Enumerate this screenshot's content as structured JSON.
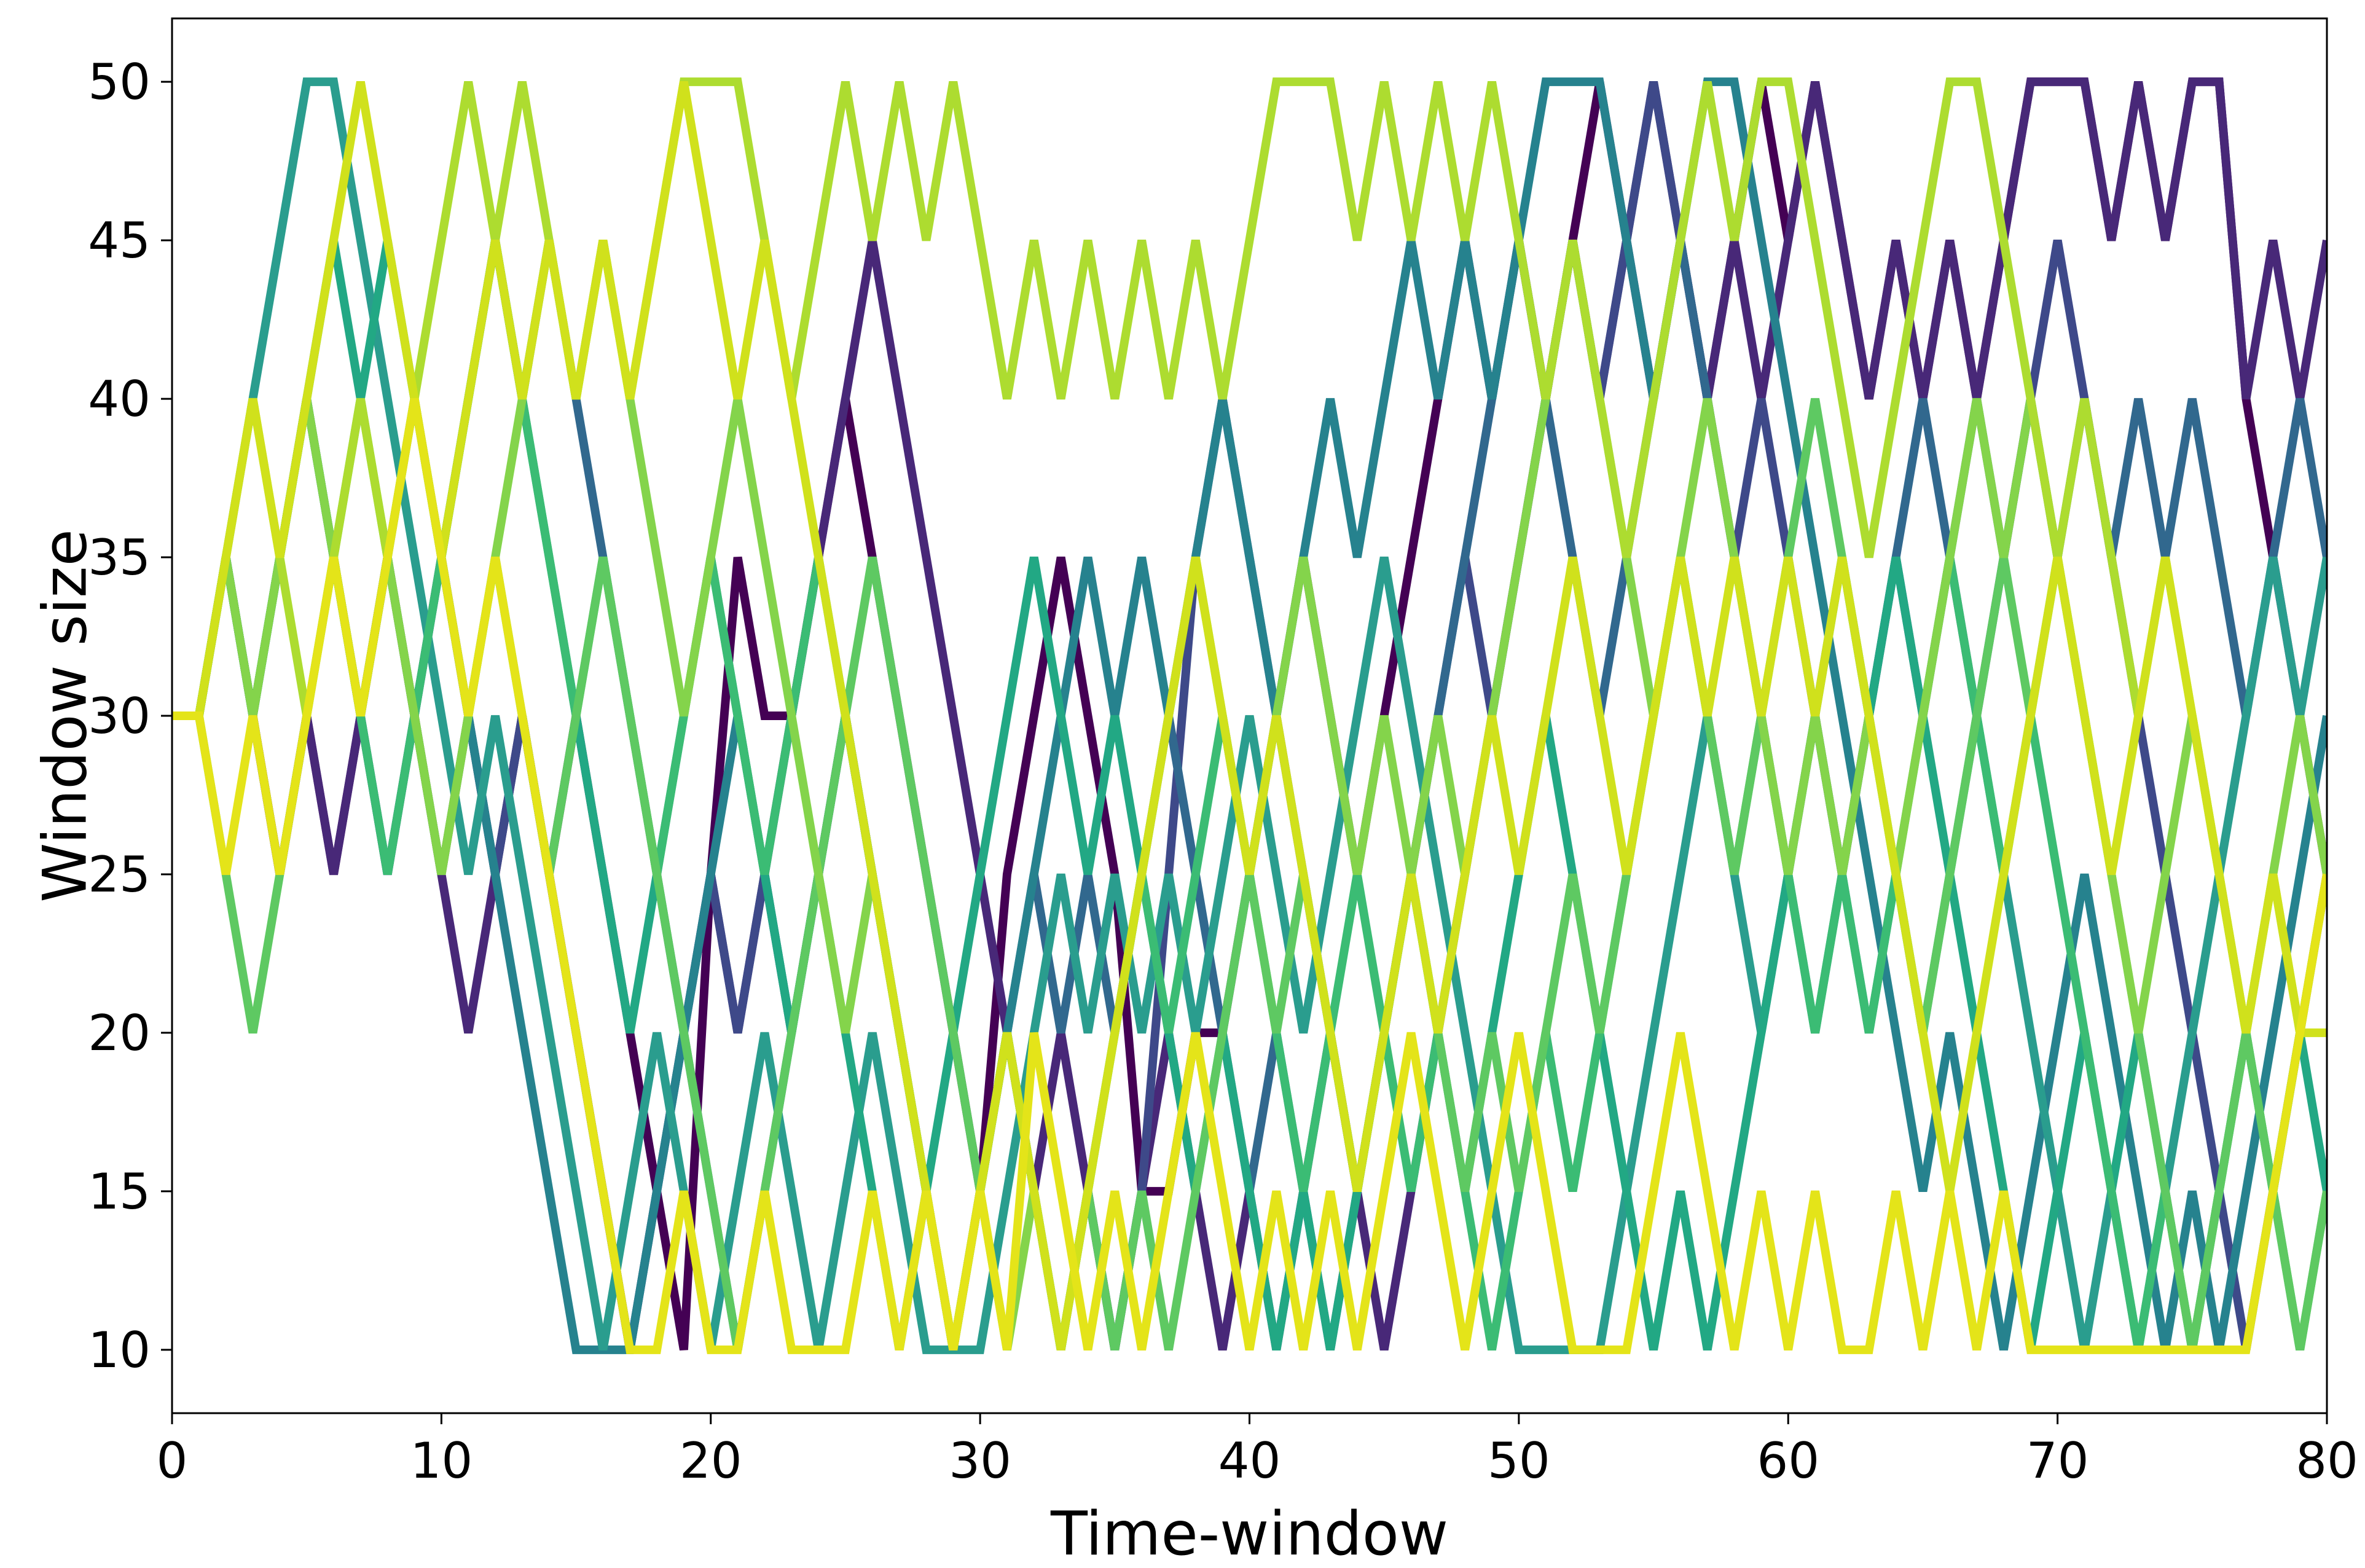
{
  "chart_data": {
    "type": "line",
    "title": "",
    "xlabel": "Time-window",
    "ylabel": "Window size",
    "xlim": [
      0,
      80
    ],
    "ylim": [
      8,
      52
    ],
    "xticks": [
      0,
      10,
      20,
      30,
      40,
      50,
      60,
      70,
      80
    ],
    "yticks": [
      10,
      15,
      20,
      25,
      30,
      35,
      40,
      45,
      50
    ],
    "grid": false,
    "legend": "none",
    "colormap": "viridis",
    "x": [
      0,
      1,
      2,
      3,
      4,
      5,
      6,
      7,
      8,
      9,
      10,
      11,
      12,
      13,
      14,
      15,
      16,
      17,
      18,
      19,
      20,
      21,
      22,
      23,
      24,
      25,
      26,
      27,
      28,
      29,
      30,
      31,
      32,
      33,
      34,
      35,
      36,
      37,
      38,
      39,
      40,
      41,
      42,
      43,
      44,
      45,
      46,
      47,
      48,
      49,
      50,
      51,
      52,
      53,
      54,
      55,
      56,
      57,
      58,
      59,
      60,
      61,
      62,
      63,
      64,
      65,
      66,
      67,
      68,
      69,
      70,
      71,
      72,
      73,
      74,
      75,
      76,
      77,
      78,
      79,
      80
    ],
    "series": [
      {
        "color": "#440154",
        "values": [
          30,
          30,
          35,
          30,
          25,
          30,
          25,
          30,
          35,
          30,
          25,
          30,
          25,
          30,
          25,
          30,
          25,
          20,
          15,
          10,
          25,
          35,
          30,
          30,
          35,
          40,
          35,
          30,
          25,
          20,
          15,
          25,
          30,
          35,
          30,
          25,
          15,
          15,
          20,
          20,
          25,
          30,
          35,
          30,
          25,
          30,
          35,
          40,
          45,
          40,
          45,
          40,
          45,
          50,
          45,
          40,
          45,
          40,
          45,
          50,
          45,
          50,
          45,
          40,
          45,
          40,
          45,
          40,
          45,
          50,
          50,
          50,
          45,
          50,
          45,
          50,
          50,
          40,
          35,
          30,
          25
        ]
      },
      {
        "color": "#482878",
        "values": [
          30,
          30,
          35,
          30,
          25,
          30,
          25,
          30,
          35,
          30,
          25,
          20,
          25,
          30,
          25,
          20,
          15,
          10,
          15,
          20,
          25,
          20,
          25,
          30,
          35,
          40,
          45,
          40,
          35,
          30,
          25,
          20,
          15,
          20,
          15,
          10,
          15,
          20,
          15,
          10,
          15,
          10,
          15,
          20,
          15,
          10,
          15,
          20,
          25,
          30,
          35,
          40,
          45,
          40,
          45,
          50,
          45,
          40,
          45,
          40,
          45,
          50,
          45,
          40,
          45,
          40,
          45,
          40,
          45,
          50,
          50,
          50,
          45,
          50,
          45,
          50,
          50,
          40,
          45,
          40,
          45
        ]
      },
      {
        "color": "#3e4989",
        "values": [
          30,
          30,
          35,
          30,
          35,
          40,
          35,
          30,
          25,
          30,
          35,
          30,
          25,
          30,
          25,
          20,
          15,
          10,
          15,
          20,
          25,
          20,
          25,
          20,
          25,
          30,
          25,
          20,
          15,
          10,
          15,
          20,
          15,
          10,
          15,
          10,
          15,
          25,
          35,
          40,
          35,
          30,
          25,
          20,
          15,
          20,
          25,
          30,
          35,
          30,
          35,
          40,
          45,
          40,
          45,
          50,
          45,
          40,
          35,
          40,
          35,
          30,
          25,
          30,
          35,
          30,
          35,
          30,
          35,
          40,
          45,
          40,
          35,
          30,
          25,
          20,
          15,
          10,
          15,
          20,
          25
        ]
      },
      {
        "color": "#31688e",
        "values": [
          30,
          30,
          35,
          30,
          35,
          40,
          35,
          30,
          25,
          30,
          35,
          40,
          45,
          40,
          45,
          40,
          35,
          30,
          25,
          20,
          15,
          10,
          15,
          20,
          25,
          30,
          25,
          20,
          15,
          10,
          15,
          20,
          25,
          20,
          25,
          20,
          25,
          30,
          25,
          20,
          15,
          20,
          15,
          10,
          15,
          20,
          25,
          30,
          35,
          40,
          45,
          40,
          35,
          30,
          35,
          40,
          45,
          40,
          35,
          30,
          25,
          30,
          25,
          30,
          35,
          40,
          35,
          40,
          35,
          40,
          35,
          40,
          35,
          40,
          35,
          40,
          35,
          30,
          35,
          40,
          35
        ]
      },
      {
        "color": "#26828e",
        "values": [
          30,
          30,
          35,
          30,
          35,
          40,
          35,
          30,
          35,
          40,
          35,
          30,
          25,
          20,
          15,
          10,
          10,
          10,
          15,
          20,
          25,
          30,
          25,
          20,
          25,
          30,
          25,
          20,
          15,
          10,
          15,
          20,
          25,
          30,
          35,
          30,
          35,
          30,
          35,
          40,
          35,
          30,
          35,
          40,
          35,
          40,
          45,
          40,
          45,
          40,
          45,
          50,
          50,
          50,
          45,
          40,
          45,
          50,
          50,
          45,
          40,
          35,
          30,
          25,
          20,
          15,
          20,
          15,
          10,
          15,
          20,
          25,
          20,
          15,
          10,
          15,
          10,
          15,
          20,
          25,
          30
        ]
      },
      {
        "color": "#2a9d8e",
        "values": [
          30,
          30,
          35,
          40,
          45,
          50,
          50,
          45,
          40,
          35,
          30,
          25,
          30,
          25,
          20,
          15,
          10,
          15,
          20,
          15,
          10,
          15,
          20,
          15,
          10,
          15,
          20,
          15,
          10,
          10,
          10,
          15,
          20,
          25,
          20,
          25,
          20,
          25,
          20,
          25,
          30,
          25,
          20,
          25,
          30,
          35,
          30,
          25,
          20,
          15,
          10,
          10,
          10,
          10,
          15,
          20,
          25,
          30,
          25,
          20,
          25,
          20,
          25,
          20,
          25,
          20,
          25,
          30,
          25,
          20,
          15,
          10,
          15,
          10,
          15,
          20,
          25,
          30,
          35,
          30,
          35
        ]
      },
      {
        "color": "#22a884",
        "values": [
          30,
          30,
          35,
          30,
          35,
          40,
          45,
          40,
          45,
          40,
          35,
          40,
          45,
          40,
          35,
          30,
          25,
          20,
          25,
          30,
          35,
          30,
          25,
          20,
          25,
          20,
          15,
          10,
          15,
          20,
          25,
          30,
          35,
          30,
          25,
          30,
          25,
          20,
          15,
          20,
          15,
          10,
          15,
          10,
          15,
          20,
          25,
          20,
          15,
          20,
          25,
          30,
          25,
          20,
          15,
          10,
          15,
          10,
          15,
          20,
          25,
          30,
          35,
          30,
          35,
          30,
          25,
          20,
          15,
          10,
          15,
          20,
          15,
          20,
          15,
          10,
          15,
          20,
          15,
          20,
          15
        ]
      },
      {
        "color": "#3bbc74",
        "values": [
          30,
          30,
          35,
          30,
          35,
          40,
          35,
          30,
          25,
          30,
          35,
          40,
          45,
          40,
          35,
          30,
          35,
          30,
          25,
          30,
          35,
          30,
          25,
          30,
          35,
          30,
          25,
          20,
          15,
          10,
          15,
          20,
          15,
          10,
          15,
          20,
          25,
          20,
          25,
          30,
          25,
          20,
          15,
          20,
          25,
          20,
          15,
          20,
          15,
          10,
          15,
          20,
          15,
          20,
          25,
          30,
          35,
          30,
          25,
          30,
          25,
          20,
          25,
          20,
          25,
          30,
          35,
          30,
          25,
          30,
          25,
          20,
          15,
          10,
          15,
          10,
          15,
          20,
          15,
          10,
          15
        ]
      },
      {
        "color": "#5ec962",
        "values": [
          30,
          30,
          25,
          20,
          25,
          30,
          35,
          40,
          35,
          30,
          25,
          30,
          35,
          30,
          25,
          30,
          35,
          30,
          25,
          20,
          15,
          10,
          15,
          20,
          25,
          30,
          35,
          30,
          25,
          20,
          15,
          20,
          15,
          10,
          15,
          10,
          15,
          10,
          15,
          20,
          25,
          20,
          25,
          20,
          15,
          20,
          25,
          20,
          15,
          20,
          15,
          20,
          25,
          20,
          25,
          30,
          35,
          30,
          25,
          30,
          35,
          40,
          35,
          30,
          25,
          20,
          25,
          30,
          35,
          30,
          35,
          30,
          25,
          20,
          15,
          10,
          15,
          20,
          15,
          10,
          15
        ]
      },
      {
        "color": "#84d44b",
        "values": [
          30,
          30,
          35,
          30,
          35,
          40,
          35,
          30,
          35,
          30,
          25,
          30,
          35,
          40,
          45,
          40,
          45,
          40,
          35,
          30,
          35,
          40,
          35,
          30,
          25,
          20,
          25,
          20,
          15,
          10,
          15,
          10,
          15,
          10,
          15,
          20,
          25,
          30,
          35,
          30,
          25,
          30,
          35,
          30,
          25,
          30,
          25,
          30,
          25,
          30,
          35,
          40,
          45,
          40,
          35,
          30,
          35,
          40,
          35,
          30,
          25,
          30,
          25,
          30,
          25,
          30,
          35,
          40,
          35,
          40,
          35,
          30,
          25,
          20,
          25,
          30,
          25,
          20,
          25,
          30,
          25
        ]
      },
      {
        "color": "#addc30",
        "values": [
          30,
          30,
          35,
          40,
          35,
          30,
          35,
          40,
          35,
          40,
          45,
          50,
          45,
          50,
          45,
          40,
          45,
          40,
          45,
          50,
          50,
          50,
          45,
          40,
          45,
          50,
          45,
          50,
          45,
          50,
          45,
          40,
          45,
          40,
          45,
          40,
          45,
          40,
          45,
          40,
          45,
          50,
          50,
          50,
          45,
          50,
          45,
          50,
          45,
          50,
          45,
          40,
          45,
          40,
          35,
          40,
          45,
          50,
          45,
          50,
          50,
          45,
          40,
          35,
          40,
          45,
          50,
          50,
          45,
          40,
          35,
          40,
          35,
          30,
          35,
          30,
          25,
          20,
          25,
          20,
          25
        ]
      },
      {
        "color": "#d0e11c",
        "values": [
          30,
          30,
          35,
          40,
          35,
          40,
          45,
          50,
          45,
          40,
          35,
          40,
          45,
          40,
          45,
          40,
          45,
          40,
          45,
          50,
          45,
          40,
          45,
          40,
          35,
          30,
          25,
          20,
          15,
          10,
          15,
          20,
          15,
          10,
          15,
          20,
          25,
          30,
          35,
          30,
          25,
          30,
          25,
          20,
          15,
          20,
          25,
          20,
          25,
          30,
          25,
          30,
          35,
          30,
          25,
          30,
          35,
          30,
          35,
          30,
          35,
          30,
          35,
          30,
          25,
          20,
          15,
          20,
          25,
          30,
          35,
          30,
          25,
          30,
          35,
          30,
          25,
          20,
          25,
          20,
          20
        ]
      },
      {
        "color": "#e4e419",
        "values": [
          30,
          30,
          25,
          30,
          25,
          30,
          35,
          30,
          35,
          40,
          35,
          30,
          35,
          30,
          25,
          20,
          15,
          10,
          10,
          15,
          10,
          10,
          15,
          10,
          10,
          10,
          15,
          10,
          15,
          10,
          15,
          10,
          20,
          15,
          10,
          15,
          10,
          15,
          20,
          15,
          10,
          15,
          10,
          15,
          10,
          15,
          20,
          15,
          10,
          15,
          20,
          15,
          10,
          10,
          10,
          15,
          20,
          15,
          10,
          15,
          10,
          15,
          10,
          10,
          15,
          10,
          15,
          10,
          15,
          10,
          10,
          10,
          10,
          10,
          10,
          10,
          10,
          10,
          15,
          20,
          25
        ]
      }
    ]
  }
}
